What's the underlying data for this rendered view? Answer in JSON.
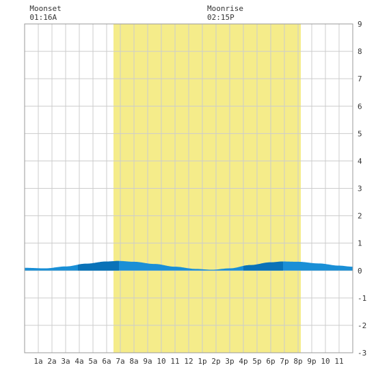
{
  "chart_data": {
    "type": "area",
    "title": "",
    "xlabel": "",
    "ylabel": "",
    "ylim": [
      -3,
      9
    ],
    "yticks": [
      "-3",
      "-2",
      "-1",
      "0",
      "1",
      "2",
      "3",
      "4",
      "5",
      "6",
      "7",
      "8",
      "9"
    ],
    "xlim": [
      0,
      24
    ],
    "xticks": [
      "1a",
      "2a",
      "3a",
      "4a",
      "5a",
      "6a",
      "7a",
      "8a",
      "9a",
      "10",
      "11",
      "12",
      "1p",
      "2p",
      "3p",
      "4p",
      "5p",
      "6p",
      "7p",
      "8p",
      "9p",
      "10",
      "11"
    ],
    "grid": true,
    "daylight": {
      "start_hour": 6.5,
      "end_hour": 20.2
    },
    "annotations": [
      {
        "id": "moonset",
        "label": "Moonset",
        "time": "01:16A",
        "hour": 1.27
      },
      {
        "id": "moonrise",
        "label": "Moonrise",
        "time": "02:15P",
        "hour": 14.25
      }
    ],
    "series": [
      {
        "x": [
          0,
          1.5,
          3,
          4.5,
          6,
          6.9,
          8,
          9.5,
          11,
          12.5,
          13.7,
          15,
          16.5,
          18,
          18.9,
          20,
          21.5,
          23,
          24
        ],
        "y": [
          0.1,
          0.08,
          0.15,
          0.25,
          0.33,
          0.35,
          0.32,
          0.24,
          0.14,
          0.06,
          0.03,
          0.08,
          0.2,
          0.3,
          0.33,
          0.32,
          0.26,
          0.18,
          0.14
        ]
      }
    ],
    "colors": {
      "daylight": "#f5ec8a",
      "tide_light": "#1a8fd6",
      "tide_dark": "#0a72b8",
      "grid": "#cccccc",
      "frame": "#999999"
    }
  }
}
